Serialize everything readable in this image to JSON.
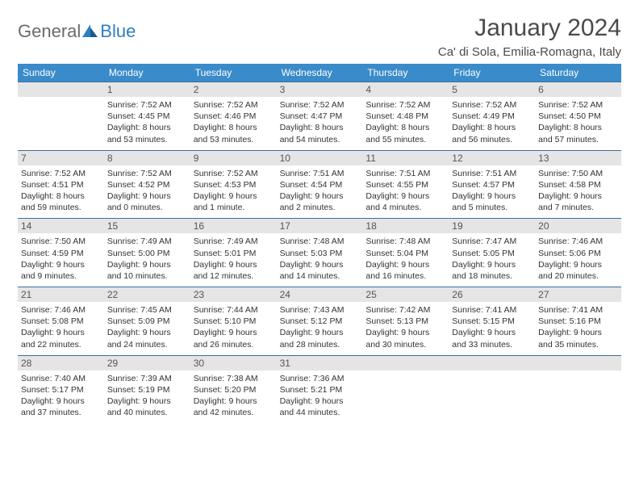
{
  "logo": {
    "textGray": "General",
    "textBlue": "Blue"
  },
  "title": "January 2024",
  "location": "Ca' di Sola, Emilia-Romagna, Italy",
  "dayHeaders": [
    "Sunday",
    "Monday",
    "Tuesday",
    "Wednesday",
    "Thursday",
    "Friday",
    "Saturday"
  ],
  "colors": {
    "headerBg": "#3a8bc9",
    "cellBorder": "#3a6fa5",
    "dayNumBg": "#e5e5e5",
    "logoGray": "#6b6b6b",
    "logoBlue": "#2f7fc2",
    "titleColor": "#4a4a4a"
  },
  "leadingEmpty": 1,
  "days": [
    {
      "n": "1",
      "sunrise": "7:52 AM",
      "sunset": "4:45 PM",
      "daylight": "8 hours and 53 minutes."
    },
    {
      "n": "2",
      "sunrise": "7:52 AM",
      "sunset": "4:46 PM",
      "daylight": "8 hours and 53 minutes."
    },
    {
      "n": "3",
      "sunrise": "7:52 AM",
      "sunset": "4:47 PM",
      "daylight": "8 hours and 54 minutes."
    },
    {
      "n": "4",
      "sunrise": "7:52 AM",
      "sunset": "4:48 PM",
      "daylight": "8 hours and 55 minutes."
    },
    {
      "n": "5",
      "sunrise": "7:52 AM",
      "sunset": "4:49 PM",
      "daylight": "8 hours and 56 minutes."
    },
    {
      "n": "6",
      "sunrise": "7:52 AM",
      "sunset": "4:50 PM",
      "daylight": "8 hours and 57 minutes."
    },
    {
      "n": "7",
      "sunrise": "7:52 AM",
      "sunset": "4:51 PM",
      "daylight": "8 hours and 59 minutes."
    },
    {
      "n": "8",
      "sunrise": "7:52 AM",
      "sunset": "4:52 PM",
      "daylight": "9 hours and 0 minutes."
    },
    {
      "n": "9",
      "sunrise": "7:52 AM",
      "sunset": "4:53 PM",
      "daylight": "9 hours and 1 minute."
    },
    {
      "n": "10",
      "sunrise": "7:51 AM",
      "sunset": "4:54 PM",
      "daylight": "9 hours and 2 minutes."
    },
    {
      "n": "11",
      "sunrise": "7:51 AM",
      "sunset": "4:55 PM",
      "daylight": "9 hours and 4 minutes."
    },
    {
      "n": "12",
      "sunrise": "7:51 AM",
      "sunset": "4:57 PM",
      "daylight": "9 hours and 5 minutes."
    },
    {
      "n": "13",
      "sunrise": "7:50 AM",
      "sunset": "4:58 PM",
      "daylight": "9 hours and 7 minutes."
    },
    {
      "n": "14",
      "sunrise": "7:50 AM",
      "sunset": "4:59 PM",
      "daylight": "9 hours and 9 minutes."
    },
    {
      "n": "15",
      "sunrise": "7:49 AM",
      "sunset": "5:00 PM",
      "daylight": "9 hours and 10 minutes."
    },
    {
      "n": "16",
      "sunrise": "7:49 AM",
      "sunset": "5:01 PM",
      "daylight": "9 hours and 12 minutes."
    },
    {
      "n": "17",
      "sunrise": "7:48 AM",
      "sunset": "5:03 PM",
      "daylight": "9 hours and 14 minutes."
    },
    {
      "n": "18",
      "sunrise": "7:48 AM",
      "sunset": "5:04 PM",
      "daylight": "9 hours and 16 minutes."
    },
    {
      "n": "19",
      "sunrise": "7:47 AM",
      "sunset": "5:05 PM",
      "daylight": "9 hours and 18 minutes."
    },
    {
      "n": "20",
      "sunrise": "7:46 AM",
      "sunset": "5:06 PM",
      "daylight": "9 hours and 20 minutes."
    },
    {
      "n": "21",
      "sunrise": "7:46 AM",
      "sunset": "5:08 PM",
      "daylight": "9 hours and 22 minutes."
    },
    {
      "n": "22",
      "sunrise": "7:45 AM",
      "sunset": "5:09 PM",
      "daylight": "9 hours and 24 minutes."
    },
    {
      "n": "23",
      "sunrise": "7:44 AM",
      "sunset": "5:10 PM",
      "daylight": "9 hours and 26 minutes."
    },
    {
      "n": "24",
      "sunrise": "7:43 AM",
      "sunset": "5:12 PM",
      "daylight": "9 hours and 28 minutes."
    },
    {
      "n": "25",
      "sunrise": "7:42 AM",
      "sunset": "5:13 PM",
      "daylight": "9 hours and 30 minutes."
    },
    {
      "n": "26",
      "sunrise": "7:41 AM",
      "sunset": "5:15 PM",
      "daylight": "9 hours and 33 minutes."
    },
    {
      "n": "27",
      "sunrise": "7:41 AM",
      "sunset": "5:16 PM",
      "daylight": "9 hours and 35 minutes."
    },
    {
      "n": "28",
      "sunrise": "7:40 AM",
      "sunset": "5:17 PM",
      "daylight": "9 hours and 37 minutes."
    },
    {
      "n": "29",
      "sunrise": "7:39 AM",
      "sunset": "5:19 PM",
      "daylight": "9 hours and 40 minutes."
    },
    {
      "n": "30",
      "sunrise": "7:38 AM",
      "sunset": "5:20 PM",
      "daylight": "9 hours and 42 minutes."
    },
    {
      "n": "31",
      "sunrise": "7:36 AM",
      "sunset": "5:21 PM",
      "daylight": "9 hours and 44 minutes."
    }
  ],
  "labels": {
    "sunrise": "Sunrise:",
    "sunset": "Sunset:",
    "daylight": "Daylight:"
  }
}
